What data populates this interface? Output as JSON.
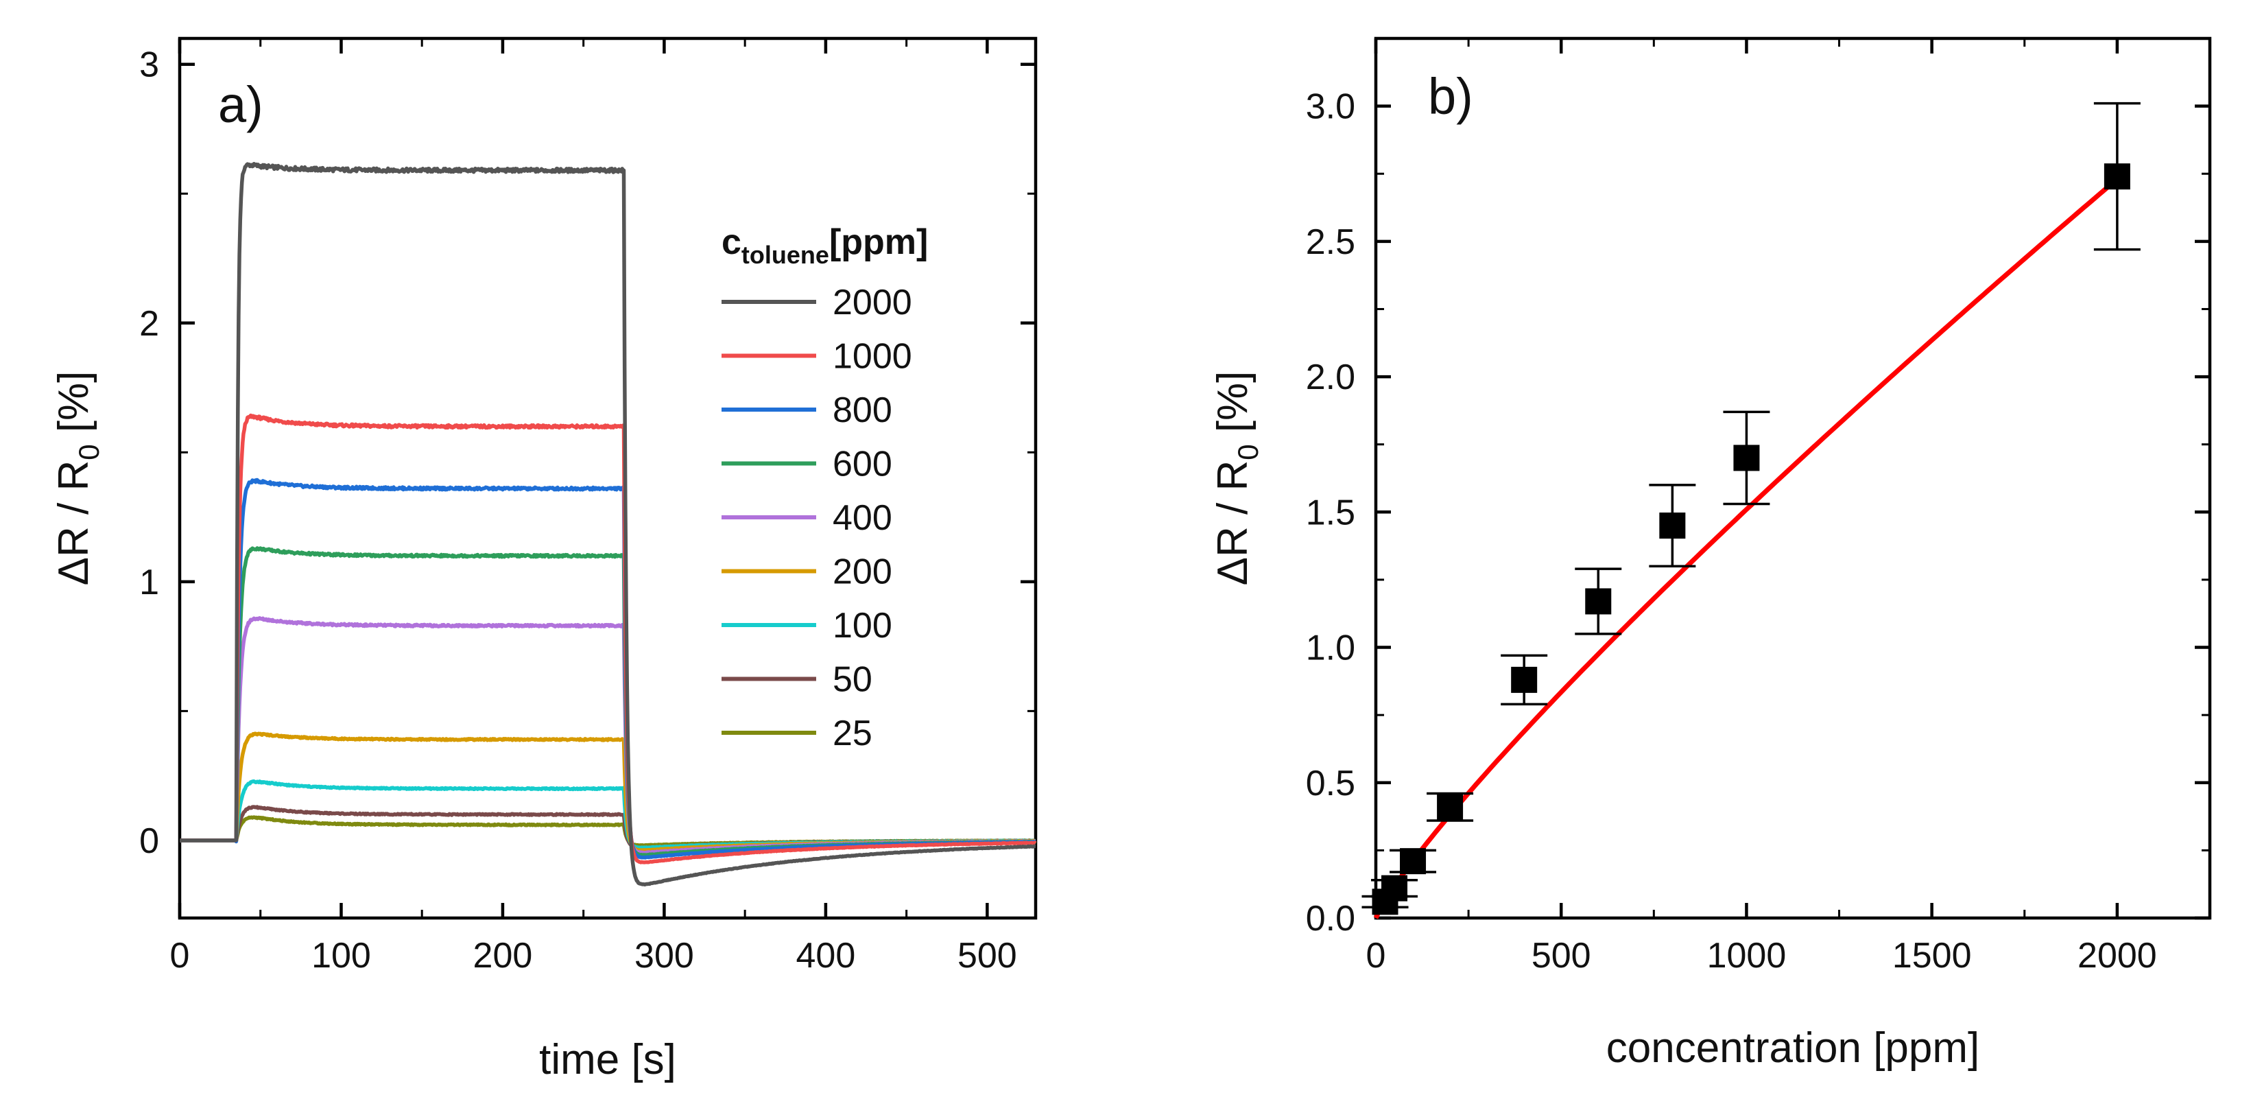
{
  "chart_data": [
    {
      "panel": "a)",
      "type": "line",
      "title": "",
      "xlabel": "time [s]",
      "ylabel_main": "ΔR / R",
      "ylabel_sub": "0",
      "ylabel_tail": " [%]",
      "xlim": [
        0,
        530
      ],
      "ylim": [
        -0.3,
        3.1
      ],
      "xticks": [
        0,
        100,
        200,
        300,
        400,
        500
      ],
      "yticks": [
        0,
        1,
        2,
        3
      ],
      "grid": false,
      "legend": {
        "title_main": "c",
        "title_sub": "toluene",
        "title_tail": "[ppm]",
        "position": "right"
      },
      "gas_on_s": 35,
      "gas_off_s": 275,
      "series": [
        {
          "name": "2000",
          "color": "#555555",
          "peak": 2.62,
          "plateau": 2.59,
          "undershoot": -0.18,
          "tau_rise": 1.0,
          "recovery_tau": 120
        },
        {
          "name": "1000",
          "color": "#f04b4b",
          "peak": 1.66,
          "plateau": 1.6,
          "undershoot": -0.09,
          "tau_rise": 1.5,
          "recovery_tau": 110
        },
        {
          "name": "800",
          "color": "#1f6fd6",
          "peak": 1.41,
          "plateau": 1.36,
          "undershoot": -0.07,
          "tau_rise": 1.8,
          "recovery_tau": 105
        },
        {
          "name": "600",
          "color": "#2e9e5b",
          "peak": 1.15,
          "plateau": 1.1,
          "undershoot": -0.06,
          "tau_rise": 2.0,
          "recovery_tau": 100
        },
        {
          "name": "400",
          "color": "#b072db",
          "peak": 0.88,
          "plateau": 0.83,
          "undershoot": -0.05,
          "tau_rise": 2.2,
          "recovery_tau": 95
        },
        {
          "name": "200",
          "color": "#d69a00",
          "peak": 0.43,
          "plateau": 0.39,
          "undershoot": -0.04,
          "tau_rise": 2.6,
          "recovery_tau": 90
        },
        {
          "name": "100",
          "color": "#16cccc",
          "peak": 0.25,
          "plateau": 0.2,
          "undershoot": -0.03,
          "tau_rise": 3.0,
          "recovery_tau": 85
        },
        {
          "name": "50",
          "color": "#7a4a4a",
          "peak": 0.15,
          "plateau": 0.1,
          "undershoot": -0.03,
          "tau_rise": 3.2,
          "recovery_tau": 80
        },
        {
          "name": "25",
          "color": "#7f8a10",
          "peak": 0.11,
          "plateau": 0.06,
          "undershoot": -0.02,
          "tau_rise": 3.4,
          "recovery_tau": 80
        }
      ]
    },
    {
      "panel": "b)",
      "type": "scatter",
      "title": "",
      "xlabel": "concentration [ppm]",
      "ylabel_main": "ΔR / R",
      "ylabel_sub": "0",
      "ylabel_tail": " [%]",
      "xlim": [
        0,
        2250
      ],
      "ylim": [
        0,
        3.25
      ],
      "xticks": [
        0,
        500,
        1000,
        1500,
        2000
      ],
      "yticks": [
        0.0,
        0.5,
        1.0,
        1.5,
        2.0,
        2.5,
        3.0
      ],
      "ytick_labels": [
        "0.0",
        "0.5",
        "1.0",
        "1.5",
        "2.0",
        "2.5",
        "3.0"
      ],
      "grid": false,
      "points": [
        {
          "x": 25,
          "y": 0.06,
          "err": 0.02
        },
        {
          "x": 50,
          "y": 0.11,
          "err": 0.03
        },
        {
          "x": 100,
          "y": 0.21,
          "err": 0.04
        },
        {
          "x": 200,
          "y": 0.41,
          "err": 0.05
        },
        {
          "x": 400,
          "y": 0.88,
          "err": 0.09
        },
        {
          "x": 600,
          "y": 1.17,
          "err": 0.12
        },
        {
          "x": 800,
          "y": 1.45,
          "err": 0.15
        },
        {
          "x": 1000,
          "y": 1.7,
          "err": 0.17
        },
        {
          "x": 2000,
          "y": 2.74,
          "err": 0.27
        }
      ],
      "fit": {
        "model": "power",
        "a": 0.00411,
        "b": 0.855,
        "color": "#ff0000"
      },
      "marker_color": "#000000"
    }
  ]
}
